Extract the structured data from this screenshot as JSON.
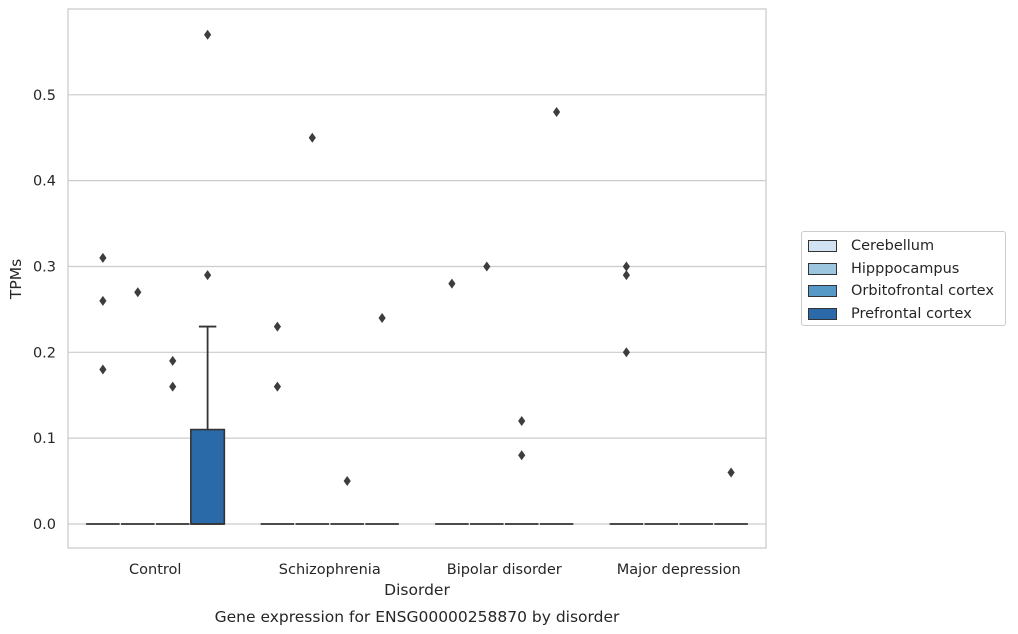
{
  "chart_data": {
    "type": "box",
    "title": "",
    "caption": "Gene expression for ENSG00000258870 by disorder",
    "xlabel": "Disorder",
    "ylabel": "TPMs",
    "ylim": [
      -0.028,
      0.6
    ],
    "yticks": [
      "0.0",
      "0.1",
      "0.2",
      "0.3",
      "0.4",
      "0.5"
    ],
    "grid": "horizontal",
    "legend_position": "right",
    "categories": [
      "Control",
      "Schizophrenia",
      "Bipolar disorder",
      "Major depression"
    ],
    "series": [
      {
        "name": "Cerebellum",
        "color": "#d1e2f2",
        "boxes": [
          {
            "q1": 0,
            "median": 0,
            "q3": 0,
            "whisker_low": 0,
            "whisker_high": 0,
            "outliers": [
              0.31,
              0.26,
              0.18
            ]
          },
          {
            "q1": 0,
            "median": 0,
            "q3": 0,
            "whisker_low": 0,
            "whisker_high": 0,
            "outliers": [
              0.23,
              0.16
            ]
          },
          {
            "q1": 0,
            "median": 0,
            "q3": 0,
            "whisker_low": 0,
            "whisker_high": 0,
            "outliers": [
              0.28
            ]
          },
          {
            "q1": 0,
            "median": 0,
            "q3": 0,
            "whisker_low": 0,
            "whisker_high": 0,
            "outliers": [
              0.3,
              0.29,
              0.2
            ]
          }
        ]
      },
      {
        "name": "Hipppocampus",
        "color": "#9cc5df",
        "boxes": [
          {
            "q1": 0,
            "median": 0,
            "q3": 0,
            "whisker_low": 0,
            "whisker_high": 0,
            "outliers": [
              0.27
            ]
          },
          {
            "q1": 0,
            "median": 0,
            "q3": 0,
            "whisker_low": 0,
            "whisker_high": 0,
            "outliers": [
              0.45
            ]
          },
          {
            "q1": 0,
            "median": 0,
            "q3": 0,
            "whisker_low": 0,
            "whisker_high": 0,
            "outliers": [
              0.3
            ]
          },
          {
            "q1": 0,
            "median": 0,
            "q3": 0,
            "whisker_low": 0,
            "whisker_high": 0,
            "outliers": []
          }
        ]
      },
      {
        "name": "Orbitofrontal cortex",
        "color": "#5799c6",
        "boxes": [
          {
            "q1": 0,
            "median": 0,
            "q3": 0,
            "whisker_low": 0,
            "whisker_high": 0,
            "outliers": [
              0.19,
              0.16
            ]
          },
          {
            "q1": 0,
            "median": 0,
            "q3": 0,
            "whisker_low": 0,
            "whisker_high": 0,
            "outliers": [
              0.05
            ]
          },
          {
            "q1": 0,
            "median": 0,
            "q3": 0,
            "whisker_low": 0,
            "whisker_high": 0,
            "outliers": [
              0.12,
              0.08
            ]
          },
          {
            "q1": 0,
            "median": 0,
            "q3": 0,
            "whisker_low": 0,
            "whisker_high": 0,
            "outliers": []
          }
        ]
      },
      {
        "name": "Prefrontal cortex",
        "color": "#2a6aa8",
        "boxes": [
          {
            "q1": 0,
            "median": 0,
            "q3": 0.11,
            "whisker_low": 0,
            "whisker_high": 0.23,
            "outliers": [
              0.57,
              0.29
            ]
          },
          {
            "q1": 0,
            "median": 0,
            "q3": 0,
            "whisker_low": 0,
            "whisker_high": 0,
            "outliers": [
              0.24
            ]
          },
          {
            "q1": 0,
            "median": 0,
            "q3": 0,
            "whisker_low": 0,
            "whisker_high": 0,
            "outliers": [
              0.48
            ]
          },
          {
            "q1": 0,
            "median": 0,
            "q3": 0,
            "whisker_low": 0,
            "whisker_high": 0,
            "outliers": [
              0.06
            ]
          }
        ]
      }
    ]
  }
}
